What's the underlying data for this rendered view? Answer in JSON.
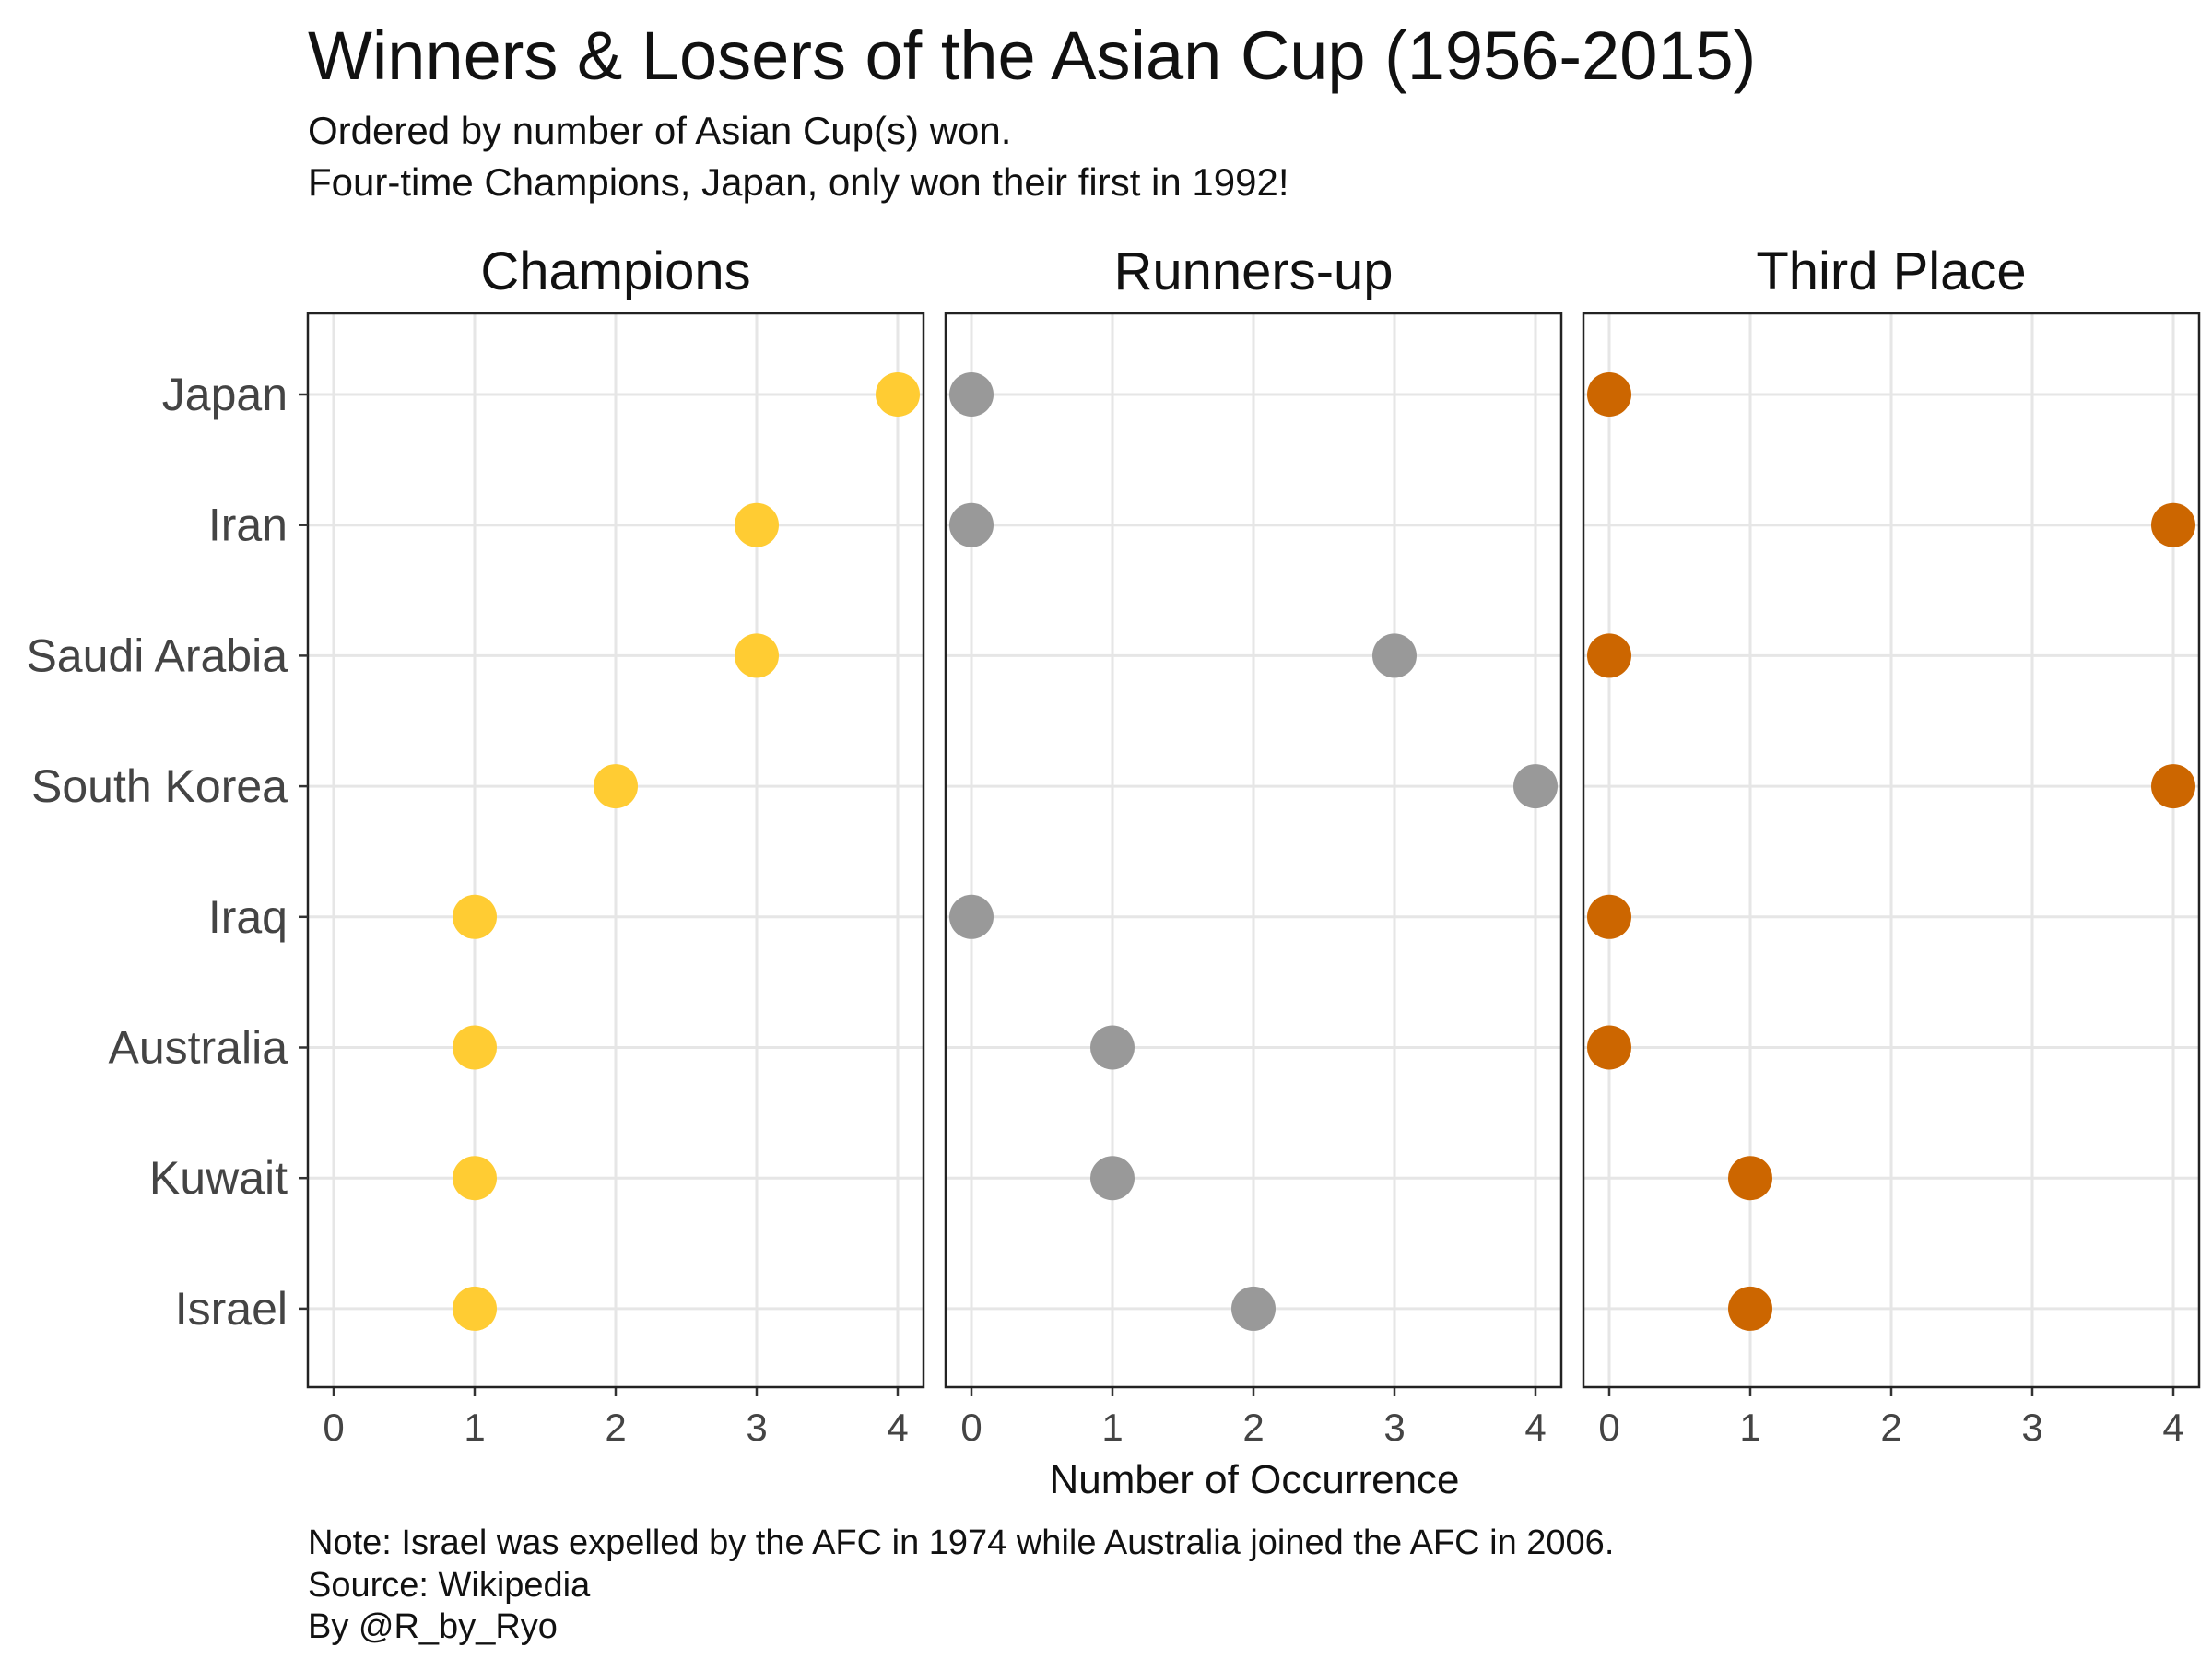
{
  "chart_data": {
    "type": "scatter",
    "title": "Winners & Losers of the Asian Cup (1956-2015)",
    "subtitle_lines": [
      "Ordered by number of Asian Cup(s) won.",
      "Four-time Champions, Japan, only won their first in 1992!"
    ],
    "xlabel": "Number of Occurrence",
    "xlim": [
      0,
      4
    ],
    "x_ticks": [
      "0",
      "1",
      "2",
      "3",
      "4"
    ],
    "grid": true,
    "legend": "none",
    "countries": [
      "Japan",
      "Iran",
      "Saudi Arabia",
      "South Korea",
      "Iraq",
      "Australia",
      "Kuwait",
      "Israel"
    ],
    "panels": [
      {
        "name": "Champions",
        "color": "#FFCC33",
        "values": [
          4,
          3,
          3,
          2,
          1,
          1,
          1,
          1
        ]
      },
      {
        "name": "Runners-up",
        "color": "#999999",
        "values": [
          0,
          0,
          3,
          4,
          0,
          1,
          1,
          2
        ]
      },
      {
        "name": "Third Place",
        "color": "#CC6600",
        "values": [
          0,
          4,
          0,
          4,
          0,
          0,
          1,
          1
        ]
      }
    ],
    "caption_lines": [
      "Note: Israel was expelled by the AFC in 1974 while Australia joined the AFC in 2006.",
      "Source: Wikipedia",
      "By @R_by_Ryo"
    ]
  }
}
